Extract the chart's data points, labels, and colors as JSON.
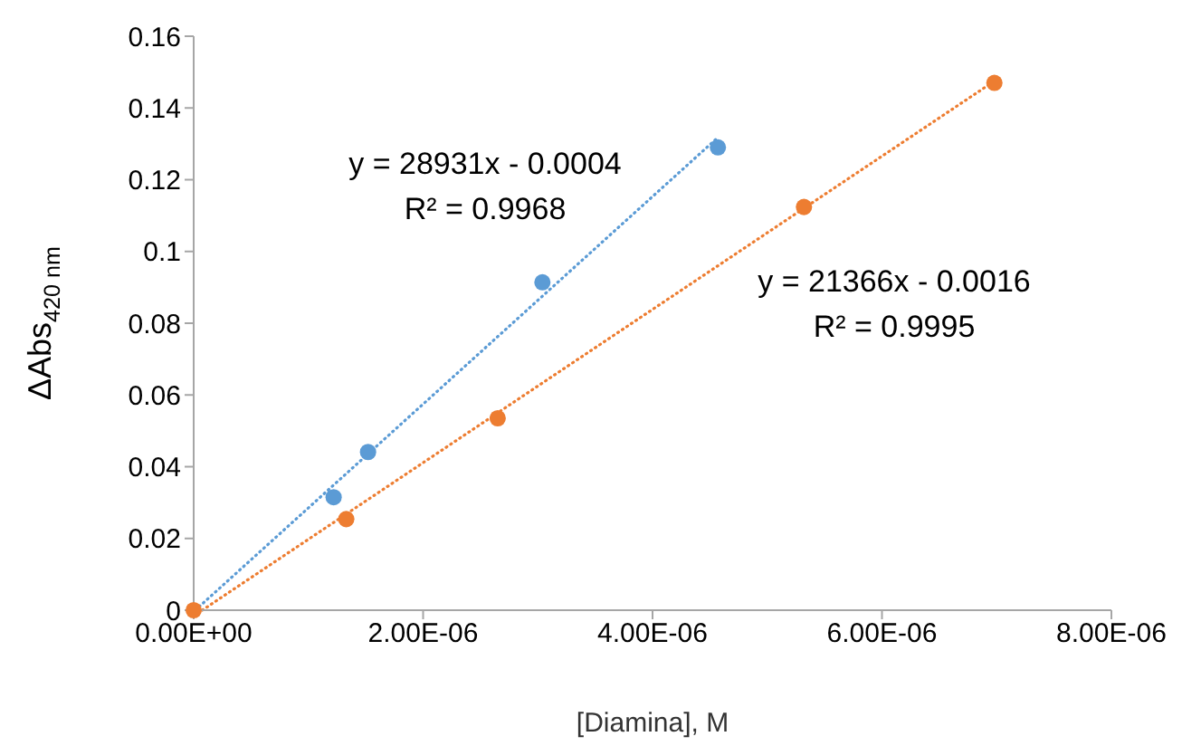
{
  "chart_data": {
    "type": "scatter",
    "xlabel": "[Diamina], M",
    "ylabel": "ΔAbs$_{420 nm}$",
    "xlim": [
      0,
      8e-06
    ],
    "xticks": [
      {
        "value": 0,
        "label": "0.00E+00"
      },
      {
        "value": 2e-06,
        "label": "2.00E-06"
      },
      {
        "value": 4e-06,
        "label": "4.00E-06"
      },
      {
        "value": 6e-06,
        "label": "6.00E-06"
      },
      {
        "value": 8e-06,
        "label": "8.00E-06"
      }
    ],
    "ylim": [
      0,
      0.16
    ],
    "yticks": [
      0,
      0.02,
      0.04,
      0.06,
      0.08,
      0.1,
      0.12,
      0.14,
      0.16
    ],
    "grid": false,
    "marker": "circle",
    "series": [
      {
        "type": "line",
        "line_style": "dotted",
        "marker": "none",
        "color": "#5b9bd5",
        "x": [
          1.4e-08,
          4.57e-06
        ],
        "values": [
          0,
          0.1318
        ]
      },
      {
        "type": "line",
        "line_style": "dotted",
        "marker": "none",
        "color": "#ed7d31",
        "x": [
          7.5e-08,
          6.98e-06
        ],
        "values": [
          0,
          0.1475
        ]
      },
      {
        "color": "#5b9bd5",
        "x": [
          1.22e-06,
          1.52e-06,
          3.04e-06,
          4.57e-06
        ],
        "values": [
          0.0315,
          0.0441,
          0.0914,
          0.129
        ]
      },
      {
        "color": "#ed7d31",
        "x": [
          0,
          1.33e-06,
          2.65e-06,
          5.32e-06,
          6.98e-06
        ],
        "values": [
          0,
          0.0254,
          0.0535,
          0.1124,
          0.147
        ]
      }
    ],
    "annotations": [
      "y = 28931x - 0.0004",
      "R² = 0.9968",
      "y = 21366x - 0.0016",
      "R² = 0.9995"
    ]
  }
}
